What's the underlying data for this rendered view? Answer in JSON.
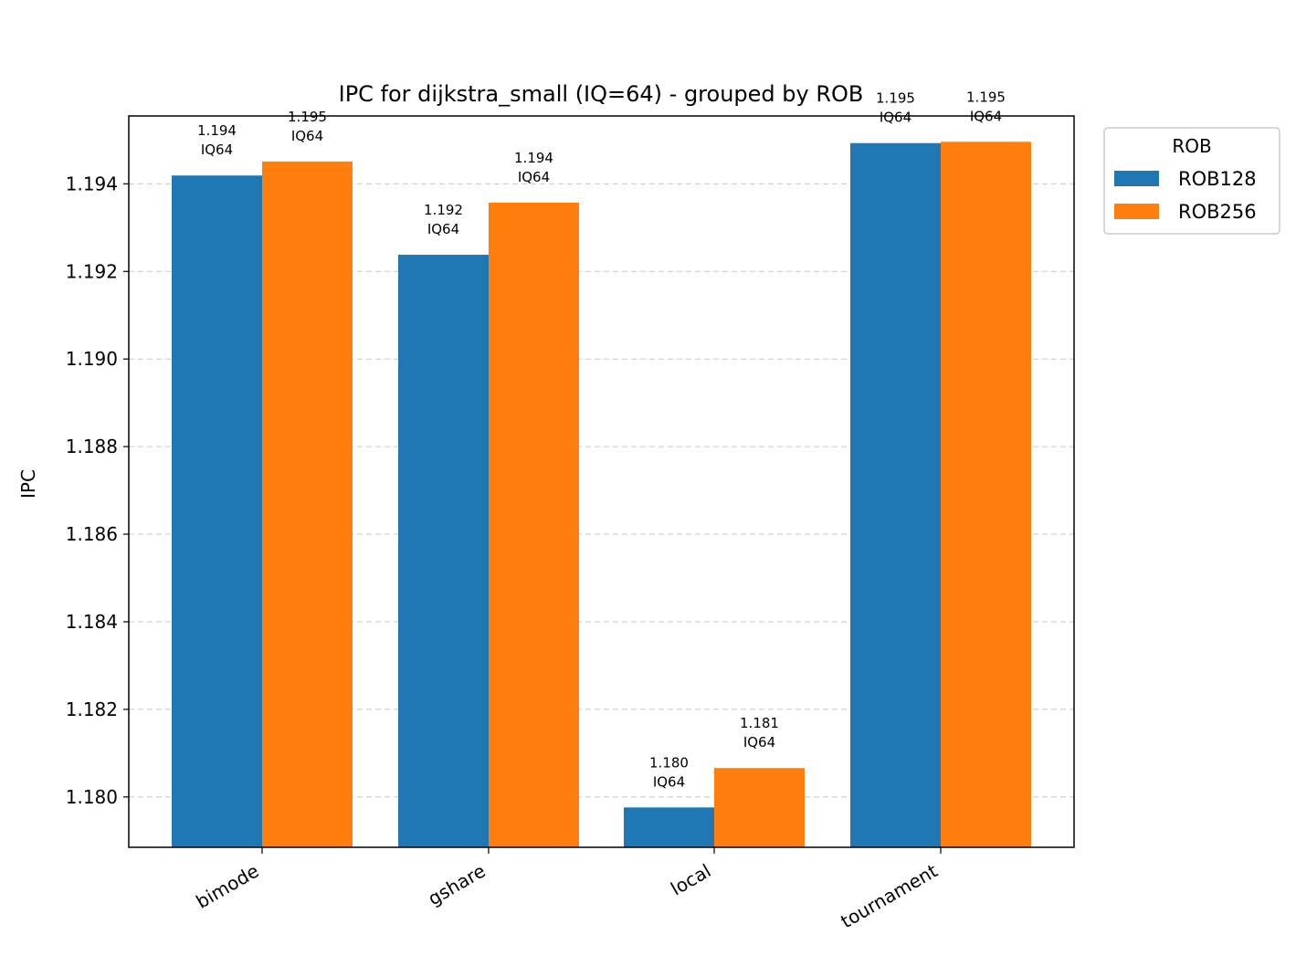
{
  "chart_data": {
    "type": "bar",
    "title": "IPC for dijkstra_small (IQ=64) - grouped by ROB",
    "xlabel": "",
    "ylabel": "IPC",
    "categories": [
      "bimode",
      "gshare",
      "local",
      "tournament"
    ],
    "series": [
      {
        "name": "ROB128",
        "color": "#1f77b4",
        "values": [
          1.19419,
          1.19238,
          1.17976,
          1.19493
        ],
        "labels": [
          "1.194",
          "1.192",
          "1.180",
          "1.195"
        ]
      },
      {
        "name": "ROB256",
        "color": "#ff7f0e",
        "values": [
          1.19451,
          1.19357,
          1.18066,
          1.19496
        ],
        "labels": [
          "1.195",
          "1.194",
          "1.181",
          "1.195"
        ]
      }
    ],
    "bar_label_suffix": "IQ64",
    "ylim": [
      1.17885,
      1.19555
    ],
    "yticks": [
      1.18,
      1.182,
      1.184,
      1.186,
      1.188,
      1.19,
      1.192,
      1.194
    ],
    "ytick_labels": [
      "1.180",
      "1.182",
      "1.184",
      "1.186",
      "1.188",
      "1.190",
      "1.192",
      "1.194"
    ],
    "grid": "y dashed",
    "legend": {
      "title": "ROB",
      "placement": "outside upper right"
    }
  }
}
